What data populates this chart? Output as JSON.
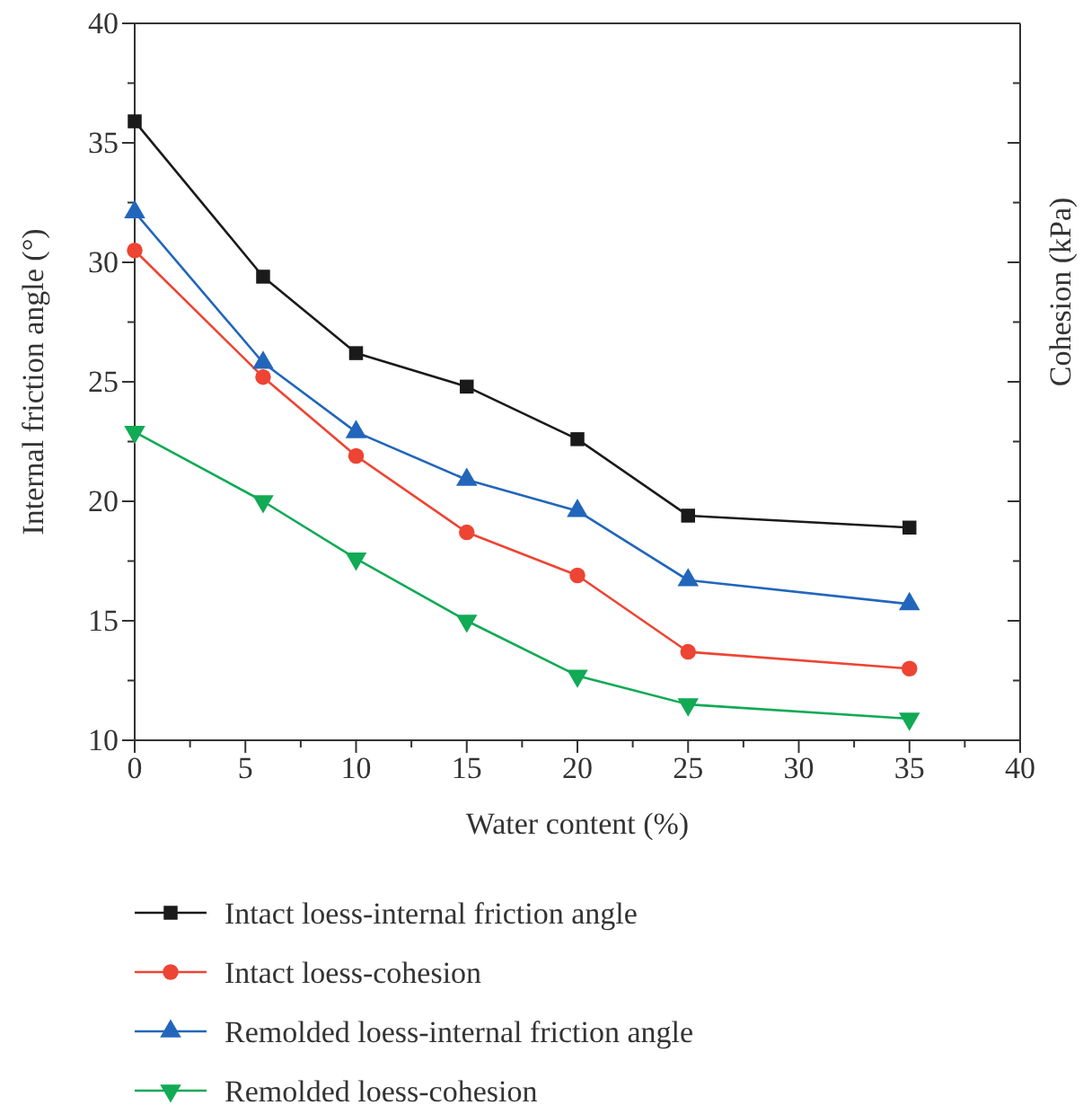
{
  "chart_data": {
    "type": "line",
    "xlabel": "Water content (%)",
    "ylabel": "Internal friction angle (°)",
    "y2label": "Cohesion (kPa)",
    "x": [
      0,
      5.8,
      10,
      15,
      20,
      25,
      35
    ],
    "xlim": [
      0,
      40
    ],
    "xticks": [
      0,
      {
        "value": 2.5,
        "label": null
      },
      5,
      {
        "value": 7.5,
        "label": null
      },
      10,
      {
        "value": 12.5,
        "label": null
      },
      15,
      {
        "value": 17.5,
        "label": null
      },
      20,
      {
        "value": 22.5,
        "label": null
      },
      25,
      {
        "value": 27.5,
        "label": null
      },
      30,
      {
        "value": 32.5,
        "label": null
      },
      35,
      {
        "value": 37.5,
        "label": null
      },
      40
    ],
    "ylim": [
      10,
      40
    ],
    "yticks": [
      10,
      {
        "value": 12.5,
        "label": null
      },
      15,
      {
        "value": 17.5,
        "label": null
      },
      20,
      {
        "value": 22.5,
        "label": null
      },
      25,
      {
        "value": 27.5,
        "label": null
      },
      30,
      {
        "value": 32.5,
        "label": null
      },
      35,
      {
        "value": 37.5,
        "label": null
      },
      40
    ],
    "series": [
      {
        "name": "Intact loess-internal friction angle",
        "color": "#1a1a1a",
        "marker": "square",
        "values": [
          35.9,
          29.4,
          26.2,
          24.8,
          22.6,
          19.4,
          18.9
        ]
      },
      {
        "name": "Intact loess-cohesion",
        "color": "#ee4433",
        "marker": "circle",
        "values": [
          30.5,
          25.2,
          21.9,
          18.7,
          16.9,
          13.7,
          13.0
        ]
      },
      {
        "name": "Remolded loess-internal friction angle",
        "color": "#2266bb",
        "marker": "triangle",
        "values": [
          32.1,
          25.8,
          22.9,
          20.9,
          19.6,
          16.7,
          15.7
        ]
      },
      {
        "name": "Remolded loess-cohesion",
        "color": "#11aa55",
        "marker": "triangle-down",
        "values": [
          22.9,
          20.0,
          17.6,
          15.0,
          12.7,
          11.5,
          10.9
        ]
      }
    ],
    "legend": "bottom",
    "grid": false,
    "line_style": "solid"
  }
}
